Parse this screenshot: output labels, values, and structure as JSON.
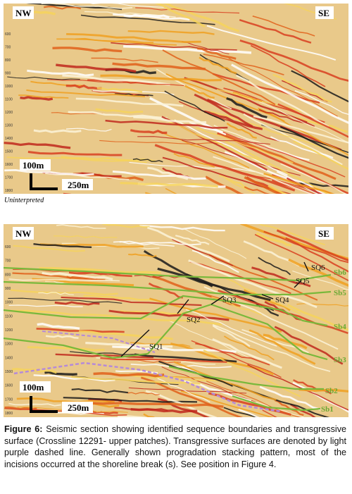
{
  "top_panel": {
    "left_label": "NW",
    "right_label": "SE",
    "depth_ticks": [
      "600",
      "700",
      "800",
      "900",
      "1000",
      "1100",
      "1200",
      "1300",
      "1400",
      "1500",
      "1600",
      "1700",
      "1800"
    ],
    "scale_vertical": "100m",
    "scale_horizontal": "250m",
    "caption": "Uninterpreted"
  },
  "bottom_panel": {
    "left_label": "NW",
    "right_label": "SE",
    "depth_ticks": [
      "600",
      "700",
      "800",
      "900",
      "1000",
      "1100",
      "1200",
      "1300",
      "1400",
      "1500",
      "1600",
      "1700",
      "1800"
    ],
    "scale_vertical": "100m",
    "scale_horizontal": "250m",
    "sequences": [
      "SQ6",
      "SQ5",
      "SQ4",
      "SQ3",
      "SQ2",
      "SQ1"
    ],
    "boundaries": [
      "Sb6",
      "Sb5",
      "Sb4",
      "Sb3",
      "Sb2",
      "Sb1"
    ]
  },
  "figure_caption": {
    "label": "Figure 6:",
    "text": "Seismic section showing identified sequence boundaries and transgressive surface (Crossline 12291- upper patches). Transgressive surfaces are denoted by light purple dashed line. Generally shown progradation stacking pattern, most of the incisions occurred at the shoreline break (s).  See position in Figure 4."
  }
}
